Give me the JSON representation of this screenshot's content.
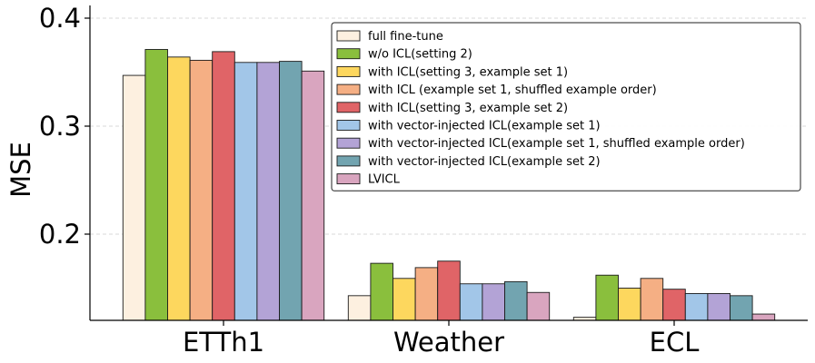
{
  "chart_data": {
    "type": "bar",
    "title": "",
    "xlabel": "",
    "ylabel": "MSE",
    "ylim": [
      0.12,
      0.4
    ],
    "yticks": [
      0.2,
      0.3,
      0.4
    ],
    "ytick_labels": [
      "0.2",
      "0.3",
      "0.4"
    ],
    "grid": "horizontal dashed",
    "legend_position": "top-right",
    "categories": [
      "ETTh1",
      "Weather",
      "ECL"
    ],
    "series": [
      {
        "name": "full fine-tune",
        "color": "#fdf0e0",
        "values": [
          0.347,
          0.143,
          0.123
        ]
      },
      {
        "name": "w/o ICL(setting 2)",
        "color": "#8abf3d",
        "values": [
          0.371,
          0.173,
          0.162
        ]
      },
      {
        "name": "with ICL(setting 3, example set 1)",
        "color": "#fdd75e",
        "values": [
          0.364,
          0.159,
          0.15
        ]
      },
      {
        "name": "with ICL (example set 1, shuffled example order)",
        "color": "#f5af84",
        "values": [
          0.361,
          0.169,
          0.159
        ]
      },
      {
        "name": "with ICL(setting 3, example set 2)",
        "color": "#e06467",
        "values": [
          0.369,
          0.175,
          0.149
        ]
      },
      {
        "name": "with vector-injected ICL(example set 1)",
        "color": "#a2c6e8",
        "values": [
          0.359,
          0.154,
          0.145
        ]
      },
      {
        "name": "with vector-injected ICL(example set 1, shuffled example order)",
        "color": "#b3a3d6",
        "values": [
          0.359,
          0.154,
          0.145
        ]
      },
      {
        "name": "with vector-injected ICL(example set 2)",
        "color": "#72a4b0",
        "values": [
          0.36,
          0.156,
          0.143
        ]
      },
      {
        "name": "LVICL",
        "color": "#d9a5bf",
        "values": [
          0.351,
          0.146,
          0.126
        ]
      }
    ]
  }
}
